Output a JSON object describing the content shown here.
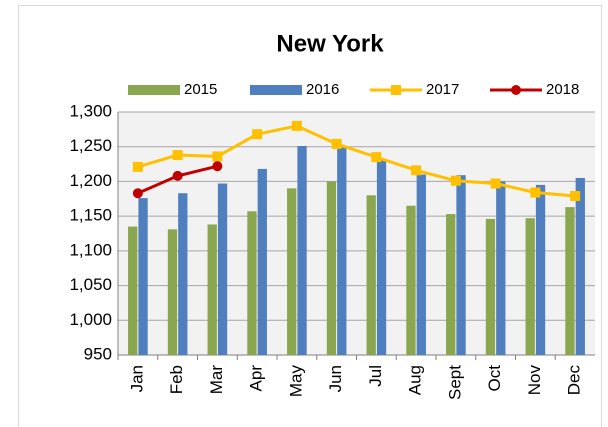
{
  "chart_data": {
    "type": "bar_line",
    "title": "New York",
    "categories": [
      "Jan",
      "Feb",
      "Mar",
      "Apr",
      "May",
      "Jun",
      "Jul",
      "Aug",
      "Sept",
      "Oct",
      "Nov",
      "Dec"
    ],
    "series": [
      {
        "name": "2015",
        "type": "bar",
        "color": "#8aa64f",
        "values": [
          1135,
          1131,
          1138,
          1157,
          1190,
          1200,
          1180,
          1165,
          1153,
          1146,
          1147,
          1163
        ]
      },
      {
        "name": "2016",
        "type": "bar",
        "color": "#4f7fbe",
        "values": [
          1176,
          1183,
          1197,
          1218,
          1251,
          1250,
          1230,
          1210,
          1209,
          1200,
          1195,
          1205
        ]
      },
      {
        "name": "2017",
        "type": "line",
        "color": "#ffc000",
        "marker": "square",
        "values": [
          1221,
          1238,
          1236,
          1268,
          1280,
          1254,
          1235,
          1216,
          1201,
          1197,
          1184,
          1179
        ]
      },
      {
        "name": "2018",
        "type": "line",
        "color": "#c00000",
        "marker": "circle",
        "values": [
          1183,
          1208,
          1222,
          null,
          null,
          null,
          null,
          null,
          null,
          null,
          null,
          null
        ]
      }
    ],
    "ylim": [
      950,
      1300
    ],
    "yticks": [
      950,
      {
        "value": 1000,
        "label": "1,000"
      },
      {
        "value": 1050,
        "label": "1,050"
      },
      {
        "value": 1100,
        "label": "1,100"
      },
      {
        "value": 1150,
        "label": "1,150"
      },
      {
        "value": 1200,
        "label": "1,200"
      },
      {
        "value": 1250,
        "label": "1,250"
      },
      {
        "value": 1300,
        "label": "1,300"
      }
    ],
    "grid": true,
    "legend": "top"
  }
}
